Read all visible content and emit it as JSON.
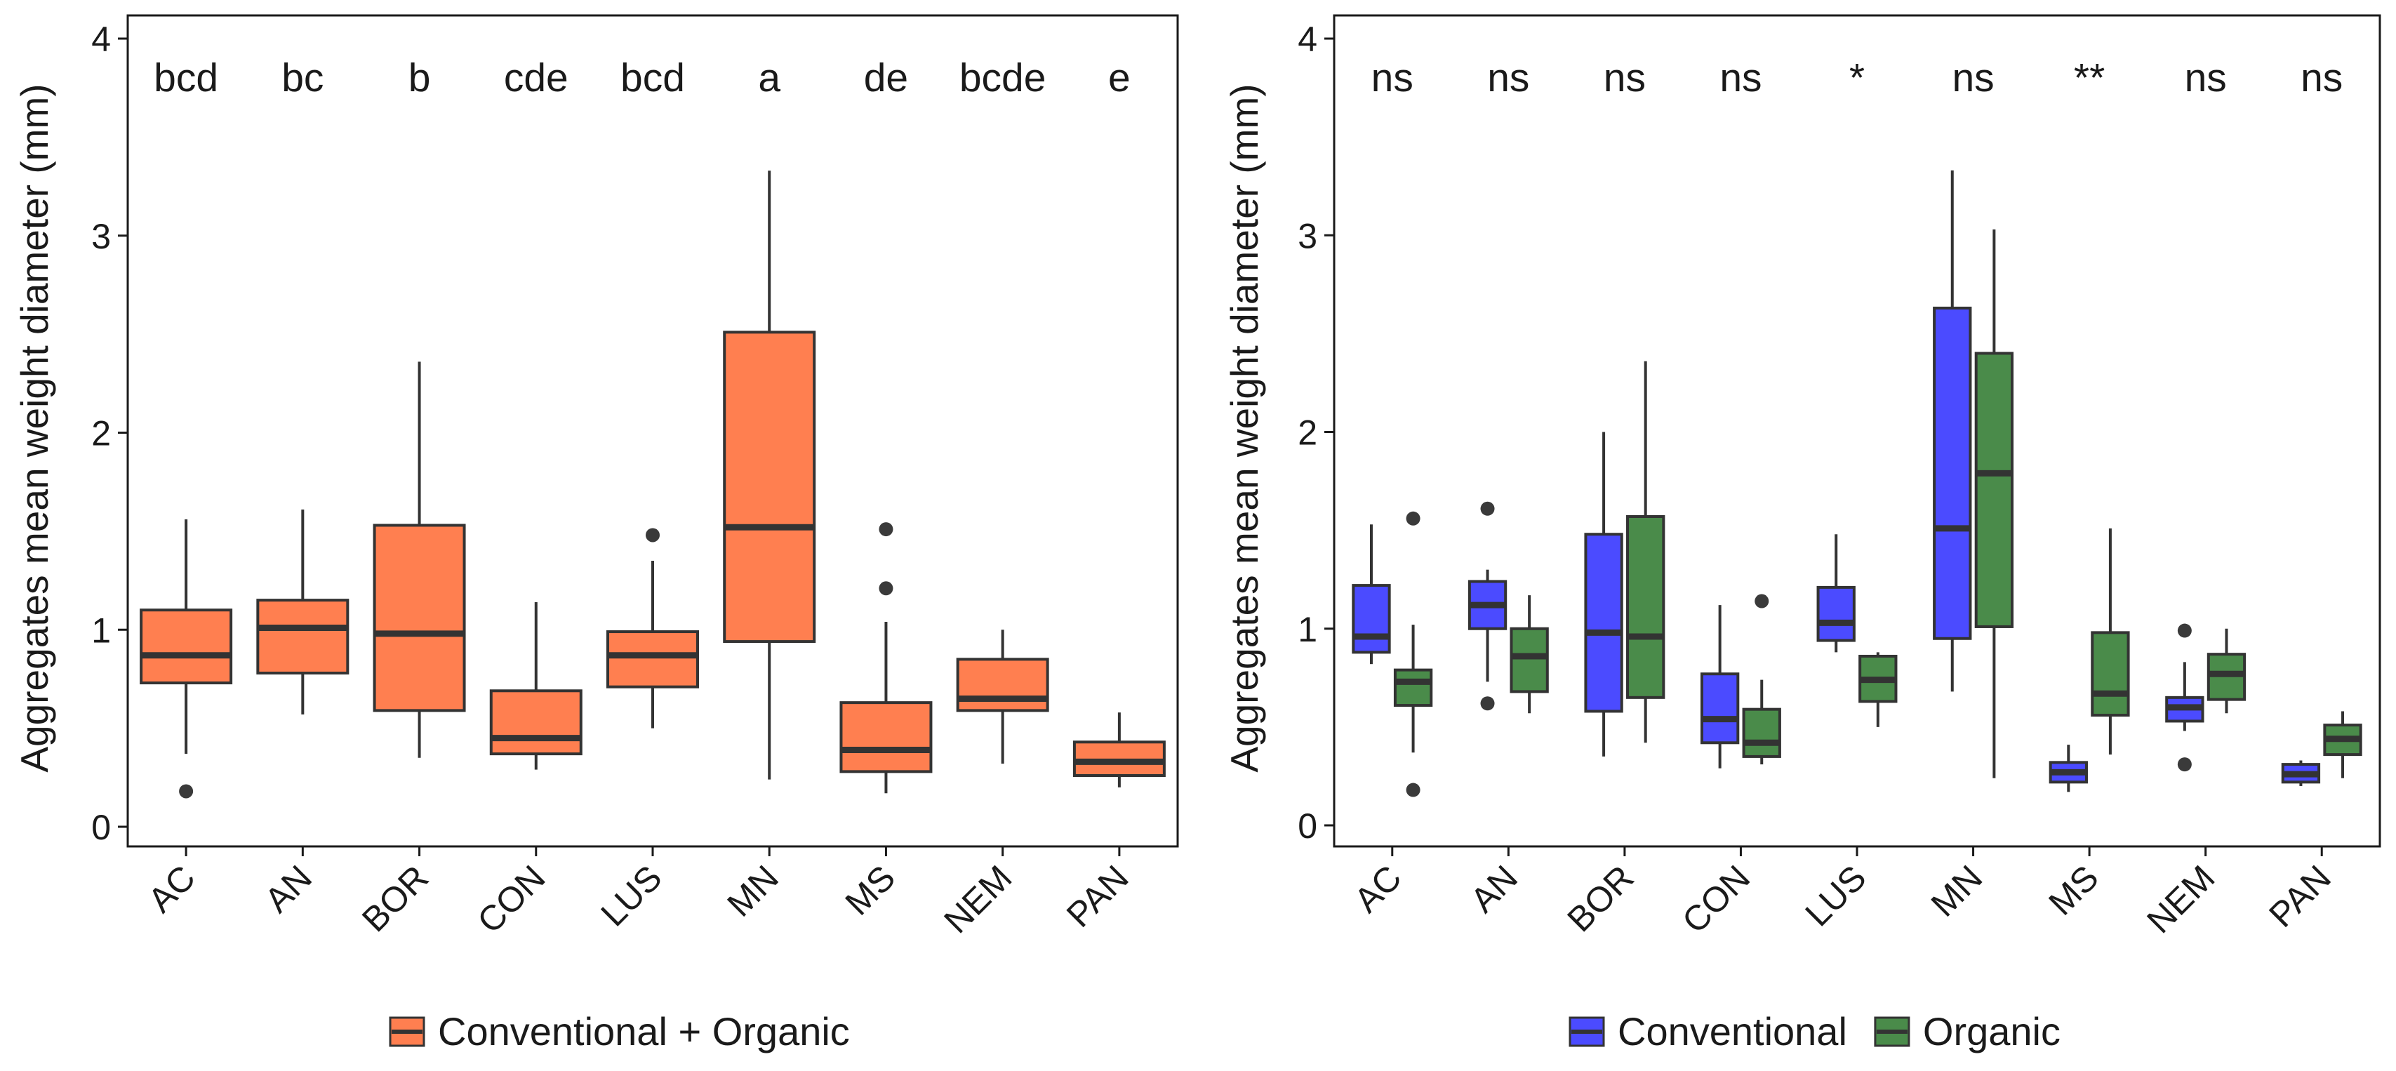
{
  "chart_data": [
    {
      "type": "box",
      "ylabel": "Aggregates mean weight diameter (mm)",
      "xlabel": "",
      "ylim": [
        -0.12,
        4.12
      ],
      "yticks": [
        0,
        1,
        2,
        3,
        4
      ],
      "grid": false,
      "legend_position": "bottom",
      "categories": [
        "AC",
        "AN",
        "BOR",
        "CON",
        "LUS",
        "MN",
        "MS",
        "NEM",
        "PAN"
      ],
      "annotations": [
        "bcd",
        "bc",
        "b",
        "cde",
        "bcd",
        "a",
        "de",
        "bcde",
        "e"
      ],
      "series": [
        {
          "name": "Conventional + Organic",
          "color": "#FF7F50",
          "boxes": [
            {
              "q1": 0.73,
              "median": 0.87,
              "q3": 1.1,
              "low": 0.37,
              "high": 1.56,
              "outliers": [
                0.18
              ]
            },
            {
              "q1": 0.78,
              "median": 1.01,
              "q3": 1.15,
              "low": 0.57,
              "high": 1.61,
              "outliers": []
            },
            {
              "q1": 0.59,
              "median": 0.98,
              "q3": 1.53,
              "low": 0.35,
              "high": 2.36,
              "outliers": []
            },
            {
              "q1": 0.37,
              "median": 0.45,
              "q3": 0.69,
              "low": 0.29,
              "high": 1.14,
              "outliers": []
            },
            {
              "q1": 0.71,
              "median": 0.87,
              "q3": 0.99,
              "low": 0.5,
              "high": 1.35,
              "outliers": [
                1.48
              ]
            },
            {
              "q1": 0.94,
              "median": 1.52,
              "q3": 2.51,
              "low": 0.24,
              "high": 3.33,
              "outliers": []
            },
            {
              "q1": 0.28,
              "median": 0.39,
              "q3": 0.63,
              "low": 0.17,
              "high": 1.04,
              "outliers": [
                1.21,
                1.51
              ]
            },
            {
              "q1": 0.59,
              "median": 0.65,
              "q3": 0.85,
              "low": 0.32,
              "high": 1.0,
              "outliers": []
            },
            {
              "q1": 0.26,
              "median": 0.33,
              "q3": 0.43,
              "low": 0.2,
              "high": 0.58,
              "outliers": []
            }
          ]
        }
      ]
    },
    {
      "type": "box",
      "ylabel": "Aggregates mean weight diameter (mm)",
      "xlabel": "",
      "ylim": [
        -0.12,
        4.12
      ],
      "yticks": [
        0,
        1,
        2,
        3,
        4
      ],
      "grid": false,
      "legend_position": "bottom",
      "categories": [
        "AC",
        "AN",
        "BOR",
        "CON",
        "LUS",
        "MN",
        "MS",
        "NEM",
        "PAN"
      ],
      "annotations": [
        "ns",
        "ns",
        "ns",
        "ns",
        "*",
        "ns",
        "**",
        "ns",
        "ns"
      ],
      "series": [
        {
          "name": "Conventional",
          "color": "#4B4BFF",
          "boxes": [
            {
              "q1": 0.88,
              "median": 0.96,
              "q3": 1.22,
              "low": 0.82,
              "high": 1.53,
              "outliers": []
            },
            {
              "q1": 1.0,
              "median": 1.12,
              "q3": 1.24,
              "low": 0.73,
              "high": 1.3,
              "outliers": [
                0.62,
                1.61
              ]
            },
            {
              "q1": 0.58,
              "median": 0.98,
              "q3": 1.48,
              "low": 0.35,
              "high": 2.0,
              "outliers": []
            },
            {
              "q1": 0.42,
              "median": 0.54,
              "q3": 0.77,
              "low": 0.29,
              "high": 1.12,
              "outliers": []
            },
            {
              "q1": 0.94,
              "median": 1.03,
              "q3": 1.21,
              "low": 0.88,
              "high": 1.48,
              "outliers": []
            },
            {
              "q1": 0.95,
              "median": 1.51,
              "q3": 2.63,
              "low": 0.68,
              "high": 3.33,
              "outliers": []
            },
            {
              "q1": 0.22,
              "median": 0.27,
              "q3": 0.32,
              "low": 0.17,
              "high": 0.41,
              "outliers": []
            },
            {
              "q1": 0.53,
              "median": 0.6,
              "q3": 0.65,
              "low": 0.48,
              "high": 0.83,
              "outliers": [
                0.31,
                0.99
              ]
            },
            {
              "q1": 0.22,
              "median": 0.26,
              "q3": 0.31,
              "low": 0.2,
              "high": 0.33,
              "outliers": []
            }
          ]
        },
        {
          "name": "Organic",
          "color": "#4A8B4A",
          "boxes": [
            {
              "q1": 0.61,
              "median": 0.73,
              "q3": 0.79,
              "low": 0.37,
              "high": 1.02,
              "outliers": [
                0.18,
                1.56
              ]
            },
            {
              "q1": 0.68,
              "median": 0.86,
              "q3": 1.0,
              "low": 0.57,
              "high": 1.17,
              "outliers": []
            },
            {
              "q1": 0.65,
              "median": 0.96,
              "q3": 1.57,
              "low": 0.42,
              "high": 2.36,
              "outliers": []
            },
            {
              "q1": 0.35,
              "median": 0.42,
              "q3": 0.59,
              "low": 0.31,
              "high": 0.74,
              "outliers": [
                1.14
              ]
            },
            {
              "q1": 0.63,
              "median": 0.74,
              "q3": 0.86,
              "low": 0.5,
              "high": 0.88,
              "outliers": []
            },
            {
              "q1": 1.01,
              "median": 1.79,
              "q3": 2.4,
              "low": 0.24,
              "high": 3.03,
              "outliers": []
            },
            {
              "q1": 0.56,
              "median": 0.67,
              "q3": 0.98,
              "low": 0.36,
              "high": 1.51,
              "outliers": []
            },
            {
              "q1": 0.64,
              "median": 0.77,
              "q3": 0.87,
              "low": 0.57,
              "high": 1.0,
              "outliers": []
            },
            {
              "q1": 0.36,
              "median": 0.44,
              "q3": 0.51,
              "low": 0.24,
              "high": 0.58,
              "outliers": []
            }
          ]
        }
      ]
    }
  ]
}
